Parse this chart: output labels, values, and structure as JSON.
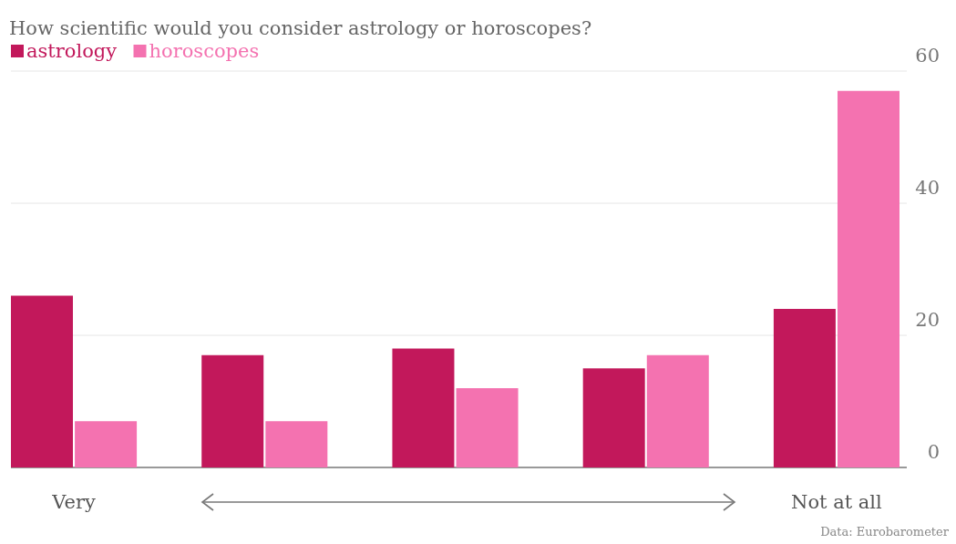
{
  "chart_data": {
    "type": "bar",
    "title": "How scientific would you consider astrology or horoscopes?",
    "categories": [
      "Very",
      null,
      null,
      null,
      "Not at all"
    ],
    "series": [
      {
        "name": "astrology",
        "color": "#c2185b",
        "values": [
          26,
          17,
          18,
          15,
          24
        ]
      },
      {
        "name": "horoscopes",
        "color": "#f472b0",
        "values": [
          7,
          7,
          12,
          17,
          57
        ]
      }
    ],
    "ylim": [
      0,
      60
    ],
    "yticks": [
      0,
      20,
      40,
      60
    ],
    "grid": "y",
    "legend": "top left",
    "annotations": [
      "Data: Eurobarometer"
    ]
  }
}
